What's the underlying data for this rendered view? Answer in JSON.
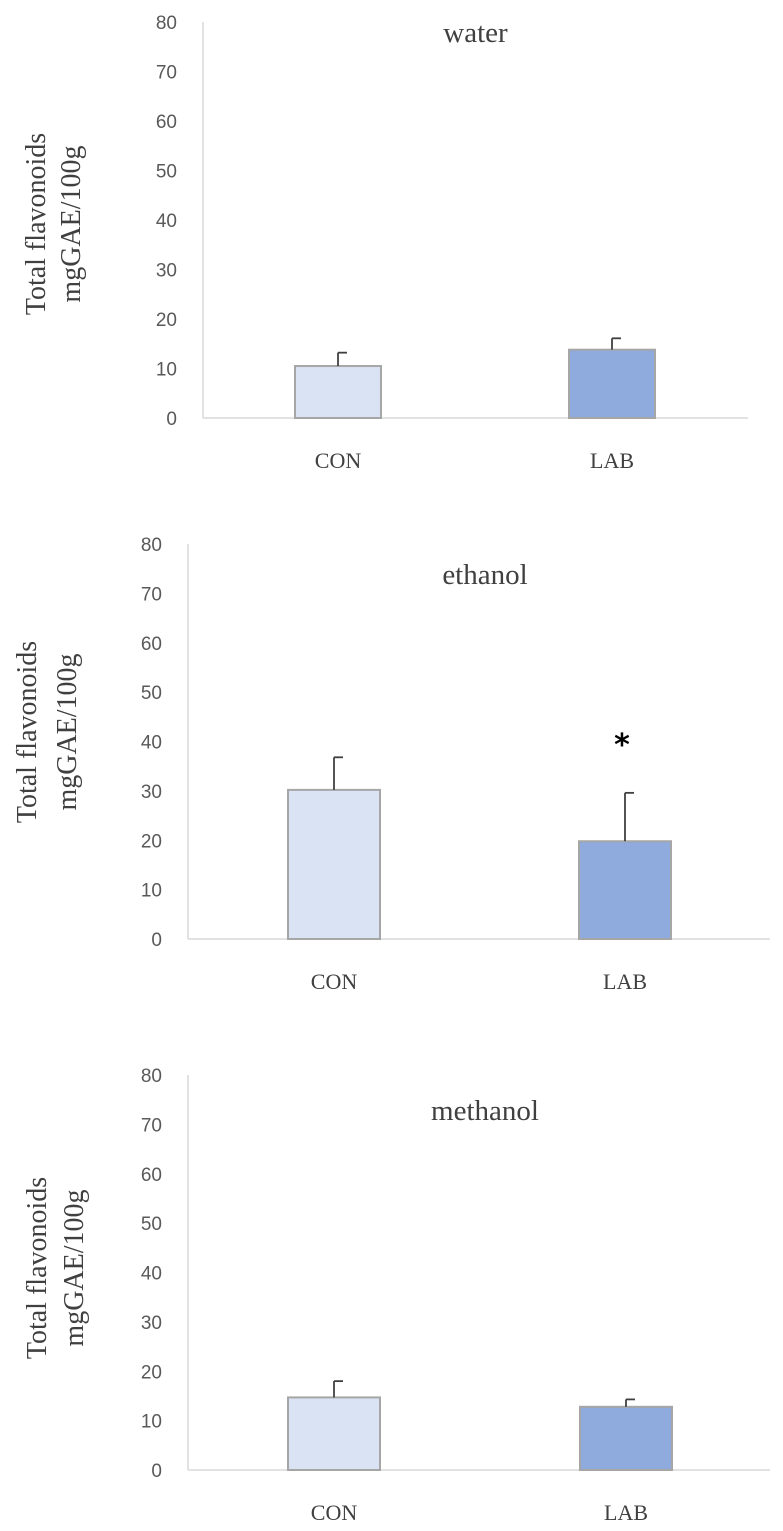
{
  "chart_data": [
    {
      "type": "bar",
      "title": "water",
      "ylabel_lines": [
        "Total flavonoids",
        "mgGAE/100g"
      ],
      "xlabel": "",
      "categories": [
        "CON",
        "LAB"
      ],
      "values": [
        10.5,
        13.8
      ],
      "errors": [
        2.7,
        2.3
      ],
      "annotations": [
        null,
        null
      ],
      "ylim": [
        0,
        80
      ],
      "yticks": [
        "0",
        "10",
        "20",
        "30",
        "40",
        "50",
        "60",
        "70",
        "80"
      ],
      "grid": false
    },
    {
      "type": "bar",
      "title": "ethanol",
      "ylabel_lines": [
        "Total flavonoids",
        "mgGAE/100g"
      ],
      "xlabel": "",
      "categories": [
        "CON",
        "LAB"
      ],
      "values": [
        30.2,
        19.8
      ],
      "errors": [
        6.6,
        9.8
      ],
      "annotations": [
        null,
        "*"
      ],
      "ylim": [
        0,
        80
      ],
      "yticks": [
        "0",
        "10",
        "20",
        "30",
        "40",
        "50",
        "60",
        "70",
        "80"
      ],
      "grid": false
    },
    {
      "type": "bar",
      "title": "methanol",
      "ylabel_lines": [
        "Total flavonoids",
        "mgGAE/100g"
      ],
      "xlabel": "",
      "categories": [
        "CON",
        "LAB"
      ],
      "values": [
        14.7,
        12.8
      ],
      "errors": [
        3.3,
        1.5
      ],
      "annotations": [
        null,
        null
      ],
      "ylim": [
        0,
        80
      ],
      "yticks": [
        "0",
        "10",
        "20",
        "30",
        "40",
        "50",
        "60",
        "70",
        "80"
      ],
      "grid": false
    }
  ],
  "colors": {
    "con_fill": "#dae3f3",
    "lab_fill": "#8faadc",
    "bar_edge": "#a6a6a6",
    "axis": "#d9d9d9",
    "error": "#404040",
    "text": "#404040",
    "tick": "#595959"
  }
}
